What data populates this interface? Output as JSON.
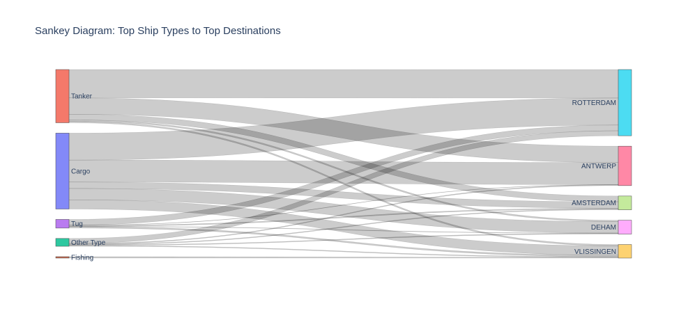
{
  "chart_data": {
    "type": "sankey",
    "title": "Sankey Diagram: Top Ship Types to Top Destinations",
    "sources": [
      {
        "name": "Tanker",
        "color": "#F4796A"
      },
      {
        "name": "Cargo",
        "color": "#8389F8"
      },
      {
        "name": "Tug",
        "color": "#B97BF0"
      },
      {
        "name": "Other Type",
        "color": "#2DC8A0"
      },
      {
        "name": "Fishing",
        "color": "#C86A4E"
      }
    ],
    "targets": [
      {
        "name": "ROTTERDAM",
        "color": "#4CDCF2"
      },
      {
        "name": "ANTWERP",
        "color": "#FF88A6"
      },
      {
        "name": "AMSTERDAM",
        "color": "#C4EA9C"
      },
      {
        "name": "DEHAM",
        "color": "#FFACFC"
      },
      {
        "name": "VLISSINGEN",
        "color": "#FDD271"
      }
    ],
    "links": [
      {
        "source": "Tanker",
        "target": "ROTTERDAM",
        "value": 400
      },
      {
        "source": "Tanker",
        "target": "ANTWERP",
        "value": 230
      },
      {
        "source": "Tanker",
        "target": "AMSTERDAM",
        "value": 80
      },
      {
        "source": "Tanker",
        "target": "DEHAM",
        "value": 20
      },
      {
        "source": "Tanker",
        "target": "VLISSINGEN",
        "value": 20
      },
      {
        "source": "Cargo",
        "target": "ROTTERDAM",
        "value": 380
      },
      {
        "source": "Cargo",
        "target": "ANTWERP",
        "value": 310
      },
      {
        "source": "Cargo",
        "target": "AMSTERDAM",
        "value": 90
      },
      {
        "source": "Cargo",
        "target": "DEHAM",
        "value": 160
      },
      {
        "source": "Cargo",
        "target": "VLISSINGEN",
        "value": 130
      },
      {
        "source": "Tug",
        "target": "ROTTERDAM",
        "value": 80
      },
      {
        "source": "Tug",
        "target": "ANTWERP",
        "value": 4
      },
      {
        "source": "Tug",
        "target": "AMSTERDAM",
        "value": 13
      },
      {
        "source": "Tug",
        "target": "DEHAM",
        "value": 5
      },
      {
        "source": "Tug",
        "target": "VLISSINGEN",
        "value": 20
      },
      {
        "source": "Other Type",
        "target": "ROTTERDAM",
        "value": 70
      },
      {
        "source": "Other Type",
        "target": "ANTWERP",
        "value": 10
      },
      {
        "source": "Other Type",
        "target": "AMSTERDAM",
        "value": 10
      },
      {
        "source": "Other Type",
        "target": "DEHAM",
        "value": 10
      },
      {
        "source": "Other Type",
        "target": "VLISSINGEN",
        "value": 10
      },
      {
        "source": "Fishing",
        "target": "VLISSINGEN",
        "value": 10
      }
    ]
  }
}
